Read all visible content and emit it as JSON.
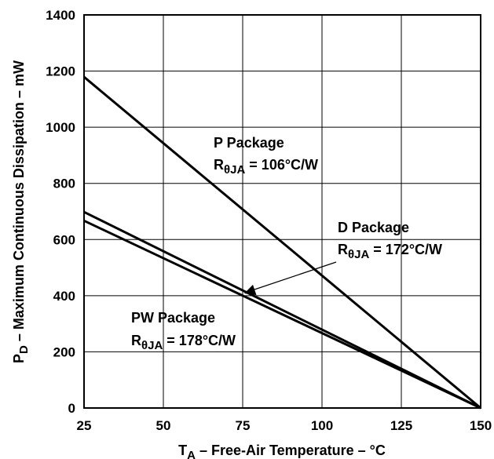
{
  "chart_data": {
    "type": "line",
    "title": "",
    "xlabel": {
      "main": "T",
      "sub": "A",
      "rest": " – Free-Air Temperature – °C"
    },
    "ylabel": {
      "main": "P",
      "sub": "D",
      "rest": " – Maximum Continuous Dissipation – mW"
    },
    "xlim": [
      25,
      150
    ],
    "ylim": [
      0,
      1400
    ],
    "x_ticks": [
      25,
      50,
      75,
      100,
      125,
      150
    ],
    "y_ticks": [
      0,
      200,
      400,
      600,
      800,
      1000,
      1200,
      1400
    ],
    "grid": true,
    "series": [
      {
        "name": "P Package",
        "x": [
          25,
          150
        ],
        "y": [
          1179,
          0
        ]
      },
      {
        "name": "D Package",
        "x": [
          25,
          150
        ],
        "y": [
          698,
          0
        ]
      },
      {
        "name": "PW Package",
        "x": [
          25,
          150
        ],
        "y": [
          667,
          0
        ]
      }
    ],
    "annotations": [
      {
        "id": "p",
        "title": "P Package",
        "r_main": "R",
        "r_sub": "θJA",
        "r_rest": " = 106°C/W",
        "x": 26,
        "y": 1085,
        "y2": 1000
      },
      {
        "id": "d",
        "title": "D Package",
        "r_main": "R",
        "r_sub": "θJA",
        "r_rest": " = 172°C/W",
        "x": 31,
        "y": 620,
        "y2": 540,
        "arrow_from": [
          30,
          535
        ],
        "arrow_to": [
          75.5,
          408
        ]
      },
      {
        "id": "pw",
        "title": "PW Package",
        "r_main": "R",
        "r_sub": "θJA",
        "r_rest": " = 178°C/W",
        "x": 50,
        "y": 322,
        "y2": 240
      }
    ]
  }
}
